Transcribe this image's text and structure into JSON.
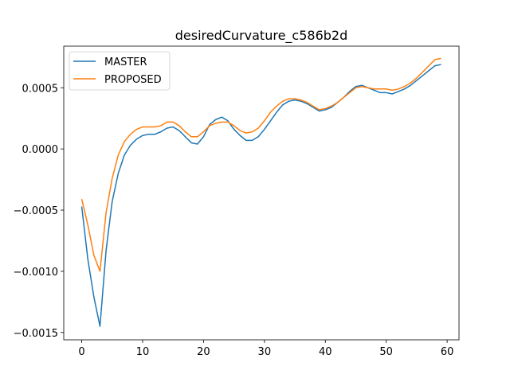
{
  "chart_data": {
    "type": "line",
    "title": "desiredCurvature_c586b2d",
    "x": [
      0,
      1,
      2,
      3,
      4,
      5,
      6,
      7,
      8,
      9,
      10,
      11,
      12,
      13,
      14,
      15,
      16,
      17,
      18,
      19,
      20,
      21,
      22,
      23,
      24,
      25,
      26,
      27,
      28,
      29,
      30,
      31,
      32,
      33,
      34,
      35,
      36,
      37,
      38,
      39,
      40,
      41,
      42,
      43,
      44,
      45,
      46,
      47,
      48,
      49,
      50,
      51,
      52,
      53,
      54,
      55,
      56,
      57,
      58,
      59
    ],
    "series": [
      {
        "name": "MASTER",
        "color": "#1f77b4",
        "values": [
          -0.00047,
          -0.0009,
          -0.00121,
          -0.00145,
          -0.00083,
          -0.00043,
          -0.0002,
          -5e-05,
          3e-05,
          8e-05,
          0.00011,
          0.00012,
          0.00012,
          0.00014,
          0.00017,
          0.00018,
          0.00015,
          0.0001,
          5e-05,
          4e-05,
          0.0001,
          0.0002,
          0.00024,
          0.00026,
          0.00023,
          0.00016,
          0.00011,
          7e-05,
          7e-05,
          0.0001,
          0.00016,
          0.00023,
          0.0003,
          0.00036,
          0.00039,
          0.0004,
          0.00039,
          0.00037,
          0.00034,
          0.00031,
          0.00032,
          0.00034,
          0.00038,
          0.00042,
          0.00047,
          0.00051,
          0.00052,
          0.0005,
          0.00048,
          0.00046,
          0.00046,
          0.00045,
          0.00047,
          0.00049,
          0.00052,
          0.00056,
          0.0006,
          0.00064,
          0.00068,
          0.00069
        ]
      },
      {
        "name": "PROPOSED",
        "color": "#ff7f0e",
        "values": [
          -0.00041,
          -0.00062,
          -0.00087,
          -0.001,
          -0.00052,
          -0.00024,
          -5e-05,
          6e-05,
          0.00012,
          0.00016,
          0.00018,
          0.00018,
          0.00018,
          0.00019,
          0.00022,
          0.00022,
          0.00019,
          0.00014,
          0.0001,
          0.0001,
          0.00014,
          0.00019,
          0.00021,
          0.00022,
          0.00022,
          0.00019,
          0.00015,
          0.00013,
          0.00014,
          0.00017,
          0.00023,
          0.0003,
          0.00035,
          0.00039,
          0.00041,
          0.00041,
          0.0004,
          0.00038,
          0.00035,
          0.00032,
          0.00033,
          0.00035,
          0.00038,
          0.00042,
          0.00046,
          0.0005,
          0.00051,
          0.0005,
          0.00049,
          0.00049,
          0.00049,
          0.00048,
          0.00049,
          0.00051,
          0.00054,
          0.00058,
          0.00063,
          0.00068,
          0.00073,
          0.00074
        ]
      }
    ],
    "xlim": [
      -2.95,
      61.95
    ],
    "xticks": [
      0,
      10,
      20,
      30,
      40,
      50,
      60
    ],
    "ylim": [
      -0.00156,
      0.00084
    ],
    "yticks": [
      {
        "value": -0.0015,
        "label": "−0.0015"
      },
      {
        "value": -0.001,
        "label": "−0.0010"
      },
      {
        "value": -0.0005,
        "label": "−0.0005"
      },
      {
        "value": 0,
        "label": "0.0000"
      },
      {
        "value": 0.0005,
        "label": "0.0005"
      }
    ],
    "legend": "upper left"
  }
}
